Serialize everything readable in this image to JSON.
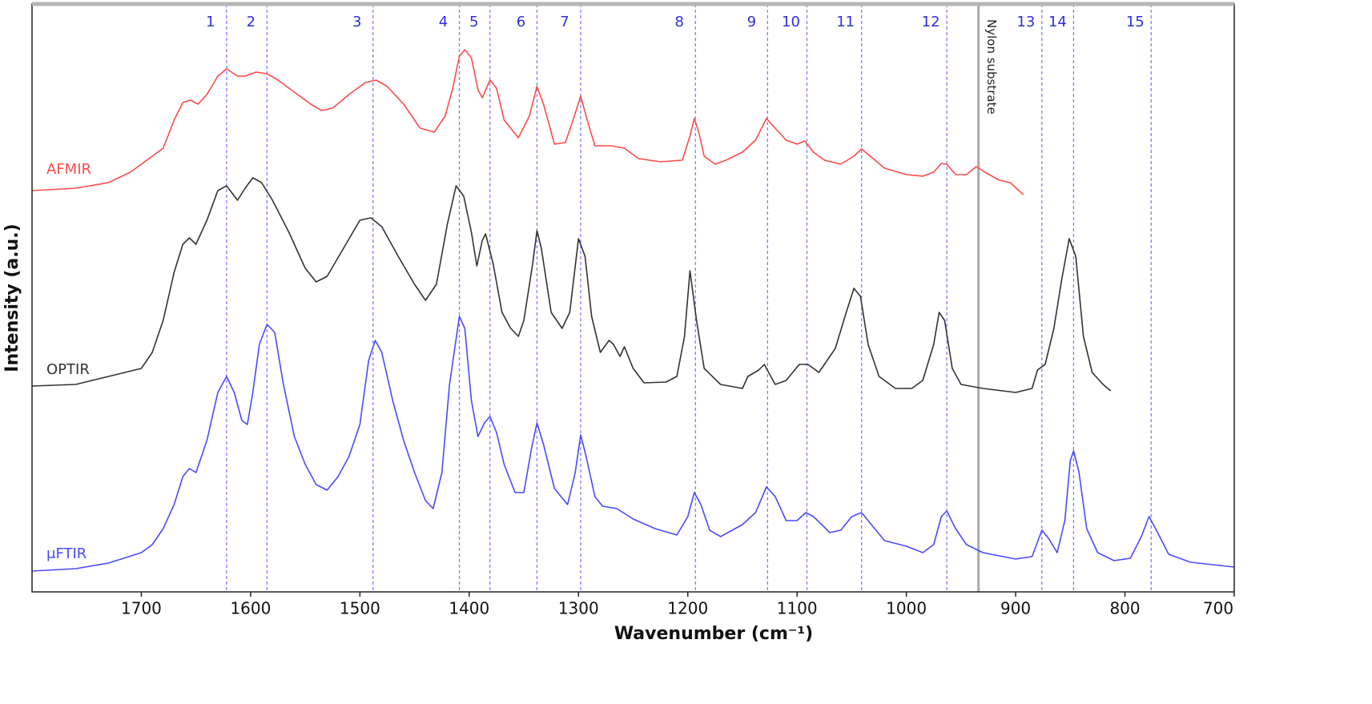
{
  "chart_data": {
    "type": "line",
    "x_label": "Wavenumber (cm⁻¹)",
    "y_label": "Intensity (a.u.)",
    "xlim": [
      1800,
      700
    ],
    "xticks": [
      1700,
      1600,
      1500,
      1400,
      1300,
      1200,
      1100,
      1000,
      900,
      800,
      700
    ],
    "ylim": [
      0,
      734
    ],
    "peaks": [
      {
        "label": "1",
        "x": 1622
      },
      {
        "label": "2",
        "x": 1585
      },
      {
        "label": "3",
        "x": 1488
      },
      {
        "label": "4",
        "x": 1409
      },
      {
        "label": "5",
        "x": 1381
      },
      {
        "label": "6",
        "x": 1338
      },
      {
        "label": "7",
        "x": 1298
      },
      {
        "label": "8",
        "x": 1193
      },
      {
        "label": "9",
        "x": 1127
      },
      {
        "label": "10",
        "x": 1091
      },
      {
        "label": "11",
        "x": 1041
      },
      {
        "label": "12",
        "x": 963
      },
      {
        "label": "13",
        "x": 876
      },
      {
        "label": "14",
        "x": 847
      },
      {
        "label": "15",
        "x": 776
      }
    ],
    "substrate": {
      "label": "Nylon substrate",
      "x": 934
    },
    "series": [
      {
        "name": "AFMIR",
        "color": "#ff4a4a",
        "x": [
          1800,
          1760,
          1730,
          1710,
          1695,
          1680,
          1670,
          1662,
          1655,
          1648,
          1640,
          1630,
          1622,
          1612,
          1605,
          1595,
          1585,
          1575,
          1560,
          1545,
          1535,
          1525,
          1510,
          1495,
          1485,
          1475,
          1460,
          1445,
          1432,
          1422,
          1415,
          1409,
          1404,
          1398,
          1392,
          1388,
          1381,
          1375,
          1368,
          1355,
          1345,
          1338,
          1332,
          1322,
          1312,
          1305,
          1298,
          1292,
          1285,
          1270,
          1258,
          1245,
          1225,
          1205,
          1198,
          1194,
          1190,
          1185,
          1175,
          1165,
          1150,
          1138,
          1128,
          1120,
          1110,
          1100,
          1093,
          1085,
          1075,
          1060,
          1048,
          1041,
          1033,
          1020,
          1000,
          985,
          975,
          968,
          963,
          955,
          945,
          936,
          928,
          915,
          905,
          893
        ],
        "values": [
          501,
          504,
          511,
          524,
          539,
          554,
          589,
          611,
          614,
          609,
          621,
          644,
          653,
          644,
          644,
          649,
          647,
          639,
          624,
          609,
          601,
          604,
          621,
          636,
          639,
          631,
          609,
          579,
          574,
          594,
          629,
          669,
          677,
          667,
          627,
          617,
          639,
          629,
          589,
          567,
          594,
          631,
          609,
          559,
          561,
          589,
          619,
          589,
          557,
          557,
          554,
          541,
          537,
          539,
          569,
          591,
          574,
          544,
          534,
          539,
          549,
          564,
          591,
          579,
          564,
          559,
          563,
          549,
          539,
          534,
          544,
          553,
          544,
          529,
          521,
          519,
          524,
          535,
          534,
          521,
          521,
          531,
          524,
          514,
          511,
          496
        ]
      },
      {
        "name": "OPTIR",
        "color": "#333333",
        "x": [
          1800,
          1760,
          1730,
          1715,
          1700,
          1690,
          1680,
          1670,
          1662,
          1656,
          1650,
          1640,
          1630,
          1622,
          1612,
          1605,
          1598,
          1590,
          1580,
          1565,
          1550,
          1540,
          1530,
          1515,
          1500,
          1490,
          1480,
          1465,
          1450,
          1440,
          1430,
          1420,
          1412,
          1405,
          1398,
          1393,
          1388,
          1385,
          1378,
          1370,
          1362,
          1355,
          1350,
          1342,
          1338,
          1334,
          1325,
          1315,
          1308,
          1300,
          1294,
          1288,
          1280,
          1272,
          1268,
          1262,
          1258,
          1250,
          1240,
          1220,
          1210,
          1203,
          1198,
          1192,
          1185,
          1170,
          1150,
          1145,
          1135,
          1130,
          1120,
          1110,
          1098,
          1090,
          1080,
          1065,
          1055,
          1048,
          1042,
          1035,
          1025,
          1010,
          995,
          985,
          975,
          970,
          965,
          958,
          950,
          930,
          900,
          885,
          880,
          873,
          865,
          858,
          851,
          845,
          838,
          830,
          820,
          813
        ],
        "values": [
          257,
          259,
          269,
          274,
          279,
          299,
          339,
          399,
          434,
          442,
          434,
          464,
          501,
          507,
          489,
          504,
          517,
          511,
          489,
          449,
          404,
          387,
          394,
          429,
          464,
          467,
          456,
          419,
          384,
          364,
          384,
          459,
          507,
          494,
          449,
          407,
          439,
          447,
          409,
          349,
          329,
          319,
          339,
          409,
          451,
          429,
          349,
          329,
          349,
          441,
          419,
          344,
          299,
          314,
          309,
          294,
          306,
          279,
          261,
          262,
          269,
          319,
          401,
          339,
          279,
          259,
          254,
          269,
          277,
          284,
          259,
          264,
          284,
          284,
          274,
          304,
          349,
          379,
          369,
          309,
          269,
          254,
          254,
          264,
          309,
          349,
          339,
          279,
          259,
          254,
          249,
          254,
          277,
          284,
          329,
          389,
          441,
          419,
          319,
          274,
          259,
          251
        ]
      },
      {
        "name": "μFTIR",
        "color": "#4a4aff",
        "x": [
          1800,
          1760,
          1730,
          1700,
          1690,
          1680,
          1670,
          1662,
          1656,
          1650,
          1640,
          1630,
          1622,
          1615,
          1608,
          1603,
          1598,
          1592,
          1585,
          1578,
          1570,
          1560,
          1550,
          1540,
          1530,
          1520,
          1510,
          1500,
          1492,
          1486,
          1480,
          1470,
          1460,
          1450,
          1440,
          1433,
          1425,
          1418,
          1409,
          1404,
          1398,
          1392,
          1386,
          1381,
          1375,
          1368,
          1358,
          1350,
          1343,
          1338,
          1332,
          1322,
          1310,
          1303,
          1298,
          1293,
          1285,
          1278,
          1265,
          1250,
          1230,
          1210,
          1200,
          1194,
          1188,
          1180,
          1170,
          1150,
          1138,
          1128,
          1120,
          1110,
          1100,
          1092,
          1085,
          1070,
          1060,
          1050,
          1041,
          1032,
          1020,
          1000,
          985,
          975,
          968,
          963,
          955,
          945,
          930,
          900,
          885,
          876,
          870,
          862,
          855,
          850,
          847,
          842,
          835,
          825,
          810,
          795,
          785,
          778,
          772,
          760,
          740,
          720,
          700
        ],
        "values": [
          26,
          29,
          36,
          49,
          59,
          79,
          109,
          144,
          154,
          149,
          189,
          249,
          269,
          249,
          214,
          209,
          249,
          309,
          334,
          324,
          259,
          194,
          159,
          134,
          127,
          144,
          169,
          209,
          289,
          314,
          299,
          239,
          189,
          149,
          114,
          104,
          149,
          259,
          344,
          329,
          239,
          194,
          211,
          219,
          199,
          159,
          124,
          124,
          179,
          211,
          184,
          129,
          109,
          149,
          196,
          169,
          119,
          107,
          104,
          91,
          79,
          71,
          94,
          124,
          109,
          77,
          69,
          84,
          99,
          131,
          119,
          89,
          89,
          99,
          94,
          74,
          77,
          94,
          99,
          84,
          64,
          57,
          49,
          59,
          94,
          101,
          79,
          59,
          49,
          41,
          44,
          77,
          67,
          49,
          89,
          164,
          176,
          149,
          79,
          49,
          39,
          42,
          69,
          94,
          79,
          47,
          37,
          34,
          31
        ]
      }
    ]
  }
}
